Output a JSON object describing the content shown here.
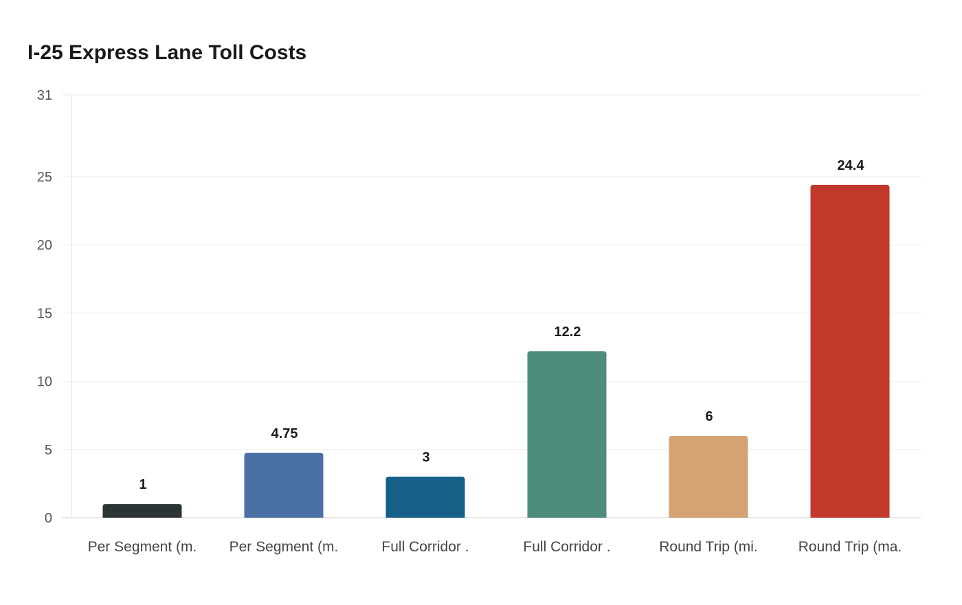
{
  "chart_data": {
    "type": "bar",
    "title": "I-25 Express Lane Toll Costs",
    "xlabel": "",
    "ylabel": "",
    "ylim": [
      0,
      31
    ],
    "yticks": [
      0,
      5,
      10,
      15,
      20,
      25,
      31
    ],
    "grid": true,
    "categories": [
      "Per Segment (m.",
      "Per Segment (m.",
      "Full Corridor .",
      "Full Corridor .",
      "Round Trip (mi.",
      "Round Trip (ma."
    ],
    "values": [
      1,
      4.75,
      3,
      12.2,
      6,
      24.4
    ],
    "data_labels": [
      "1",
      "4.75",
      "3",
      "12.2",
      "6",
      "24.4"
    ],
    "colors": [
      "#2d3436",
      "#4a6fa5",
      "#166088",
      "#4e8d7c",
      "#d4a373",
      "#c0392b"
    ]
  }
}
